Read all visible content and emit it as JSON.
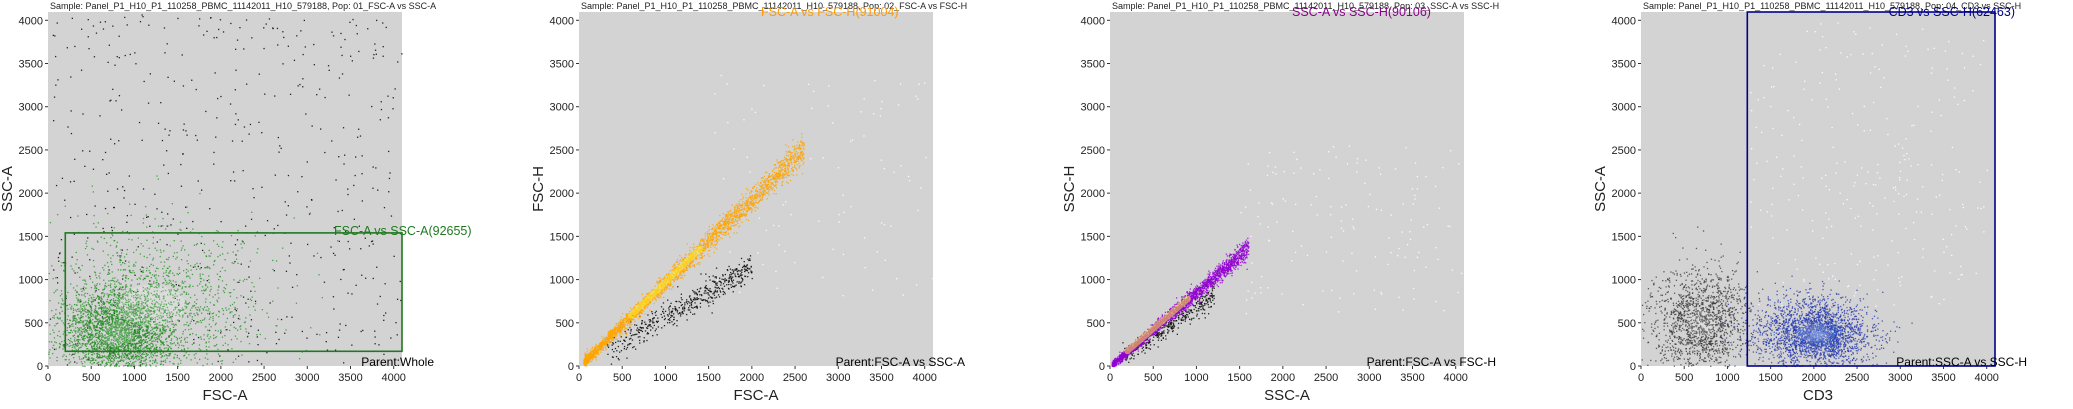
{
  "colors": {
    "background": "#d3d3d3",
    "green": "#1f7a1f",
    "orange": "#ff9900",
    "purple": "#8b008b",
    "navy": "#00008b"
  },
  "chart_data": [
    {
      "type": "scatter",
      "sample_title": "Sample: Panel_P1_H10_P1_110258_PBMC_11142011_H10_579188, Pop: 01_FSC-A vs SSC-A",
      "xlabel": "FSC-A",
      "ylabel": "SSC-A",
      "xlim": [
        0,
        4096
      ],
      "ylim": [
        0,
        4096
      ],
      "xticks": [
        0,
        500,
        1000,
        1500,
        2000,
        2500,
        3000,
        3500,
        4000
      ],
      "yticks": [
        0,
        500,
        1000,
        1500,
        2000,
        2500,
        3000,
        3500,
        4000
      ],
      "gate": {
        "label": "FSC-A vs SSC-A(92655)",
        "color": "#1f7a1f",
        "x": [
          200,
          4096
        ],
        "y": [
          170,
          1540
        ]
      },
      "parent": "Parent:Whole",
      "clusters": [
        {
          "color": "#228b22",
          "cx": 800,
          "cy": 380,
          "sx": 320,
          "sy": 260,
          "n": 2600
        },
        {
          "color": "#1e901e",
          "cx": 1200,
          "cy": 700,
          "sx": 650,
          "sy": 480,
          "n": 1400
        }
      ],
      "sparse": {
        "color": "#111111",
        "n": 520,
        "xmin": 0,
        "xmax": 4096,
        "ymin": 0,
        "ymax": 4096
      }
    },
    {
      "type": "scatter",
      "sample_title": "Sample: Panel_P1_H10_P1_110258_PBMC_11142011_H10_579188, Pop: 02_FSC-A vs FSC-H",
      "xlabel": "FSC-A",
      "ylabel": "FSC-H",
      "xlim": [
        0,
        4096
      ],
      "ylim": [
        0,
        4096
      ],
      "xticks": [
        0,
        500,
        1000,
        1500,
        2000,
        2500,
        3000,
        3500,
        4000
      ],
      "yticks": [
        0,
        500,
        1000,
        1500,
        2000,
        2500,
        3000,
        3500,
        4000
      ],
      "gate": {
        "label": "FSC-A vs FSC-H(91004)",
        "color": "#ff9900"
      },
      "parent": "Parent:FSC-A vs SSC-A",
      "diagonal": {
        "color": "#ffa500",
        "x0": 50,
        "x1": 2600,
        "slope": 0.97,
        "spread": 60,
        "n": 2800,
        "core_x": [
          600,
          1400
        ]
      },
      "lower_band": {
        "color": "#111111",
        "x0": 300,
        "x1": 2000,
        "slope": 0.58,
        "spread": 80,
        "n": 500
      },
      "sparse": {
        "color": "#ffffff",
        "n": 90,
        "xmin": 1500,
        "xmax": 4096,
        "ymin": 800,
        "ymax": 3400
      }
    },
    {
      "type": "scatter",
      "sample_title": "Sample: Panel_P1_H10_P1_110258_PBMC_11142011_H10_579188, Pop: 03_SSC-A vs SSC-H",
      "xlabel": "SSC-A",
      "ylabel": "SSC-H",
      "xlim": [
        0,
        4096
      ],
      "ylim": [
        0,
        4096
      ],
      "xticks": [
        0,
        500,
        1000,
        1500,
        2000,
        2500,
        3000,
        3500,
        4000
      ],
      "yticks": [
        0,
        500,
        1000,
        1500,
        2000,
        2500,
        3000,
        3500,
        4000
      ],
      "gate": {
        "label": "SSC-A vs SSC-H(90106)",
        "color": "#8b008b"
      },
      "parent": "Parent:FSC-A vs FSC-H",
      "diagonal": {
        "color": "#9400d3",
        "x0": 20,
        "x1": 1600,
        "slope": 0.86,
        "spread": 40,
        "n": 2400,
        "core_x": [
          200,
          900
        ]
      },
      "lower_band": {
        "color": "#111111",
        "x0": 100,
        "x1": 1200,
        "slope": 0.7,
        "spread": 60,
        "n": 350
      },
      "sparse": {
        "color": "#ffffff",
        "n": 140,
        "xmin": 1500,
        "xmax": 4096,
        "ymin": 600,
        "ymax": 2600
      }
    },
    {
      "type": "scatter",
      "sample_title": "Sample: Panel_P1_H10_P1_110258_PBMC_11142011_H10_579188, Pop: 04_CD3 vs SSC-H",
      "xlabel": "CD3",
      "ylabel": "SSC-A",
      "xlim": [
        0,
        4096
      ],
      "ylim": [
        0,
        4096
      ],
      "xticks": [
        0,
        500,
        1000,
        1500,
        2000,
        2500,
        3000,
        3500,
        4000
      ],
      "yticks": [
        0,
        500,
        1000,
        1500,
        2000,
        2500,
        3000,
        3500,
        4000
      ],
      "gate": {
        "label": "CD3 vs SSC-H(62463)",
        "color": "#00008b",
        "x": [
          1230,
          4096
        ],
        "y": [
          0,
          4096
        ]
      },
      "parent": "Parent:SSC-A vs SSC-H",
      "clusters": [
        {
          "color": "#333333",
          "cx": 700,
          "cy": 500,
          "sx": 280,
          "sy": 330,
          "n": 1500
        },
        {
          "color": "#2233aa",
          "cx": 2000,
          "cy": 380,
          "sx": 340,
          "sy": 200,
          "n": 2100
        },
        {
          "color": "#2f57c6",
          "cx": 2050,
          "cy": 360,
          "sx": 160,
          "sy": 90,
          "n": 500
        }
      ],
      "sparse": {
        "color": "#ffffff",
        "n": 260,
        "xmin": 1250,
        "xmax": 4000,
        "ymin": 700,
        "ymax": 4000
      }
    }
  ]
}
